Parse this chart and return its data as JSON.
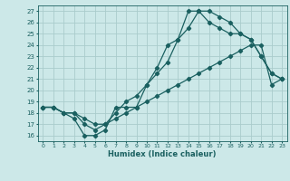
{
  "xlabel": "Humidex (Indice chaleur)",
  "background_color": "#cce8e8",
  "grid_color": "#aacccc",
  "line_color": "#1a6060",
  "xlim": [
    -0.5,
    23.5
  ],
  "ylim": [
    15.5,
    27.5
  ],
  "xticks": [
    0,
    1,
    2,
    3,
    4,
    5,
    6,
    7,
    8,
    9,
    10,
    11,
    12,
    13,
    14,
    15,
    16,
    17,
    18,
    19,
    20,
    21,
    22,
    23
  ],
  "yticks": [
    16,
    17,
    18,
    19,
    20,
    21,
    22,
    23,
    24,
    25,
    26,
    27
  ],
  "hours": [
    0,
    1,
    2,
    3,
    4,
    5,
    6,
    7,
    8,
    9,
    10,
    11,
    12,
    13,
    14,
    15,
    16,
    17,
    18,
    19,
    20,
    21,
    22,
    23
  ],
  "line1": [
    18.5,
    18.5,
    18.0,
    17.5,
    16.0,
    16.0,
    16.5,
    18.5,
    18.5,
    18.5,
    20.5,
    22.0,
    24.0,
    24.5,
    25.5,
    27.0,
    27.0,
    26.5,
    26.0,
    25.0,
    24.5,
    23.0,
    21.5,
    21.0
  ],
  "line2": [
    18.5,
    18.5,
    18.0,
    18.0,
    17.0,
    16.5,
    17.0,
    18.0,
    19.0,
    19.5,
    20.5,
    21.5,
    22.5,
    24.5,
    27.0,
    27.0,
    26.0,
    25.5,
    25.0,
    25.0,
    24.5,
    23.0,
    21.5,
    21.0
  ],
  "line3": [
    18.5,
    18.5,
    18.0,
    18.0,
    17.5,
    17.0,
    17.0,
    17.5,
    18.0,
    18.5,
    19.0,
    19.5,
    20.0,
    20.5,
    21.0,
    21.5,
    22.0,
    22.5,
    23.0,
    23.5,
    24.0,
    24.0,
    20.5,
    21.0
  ]
}
